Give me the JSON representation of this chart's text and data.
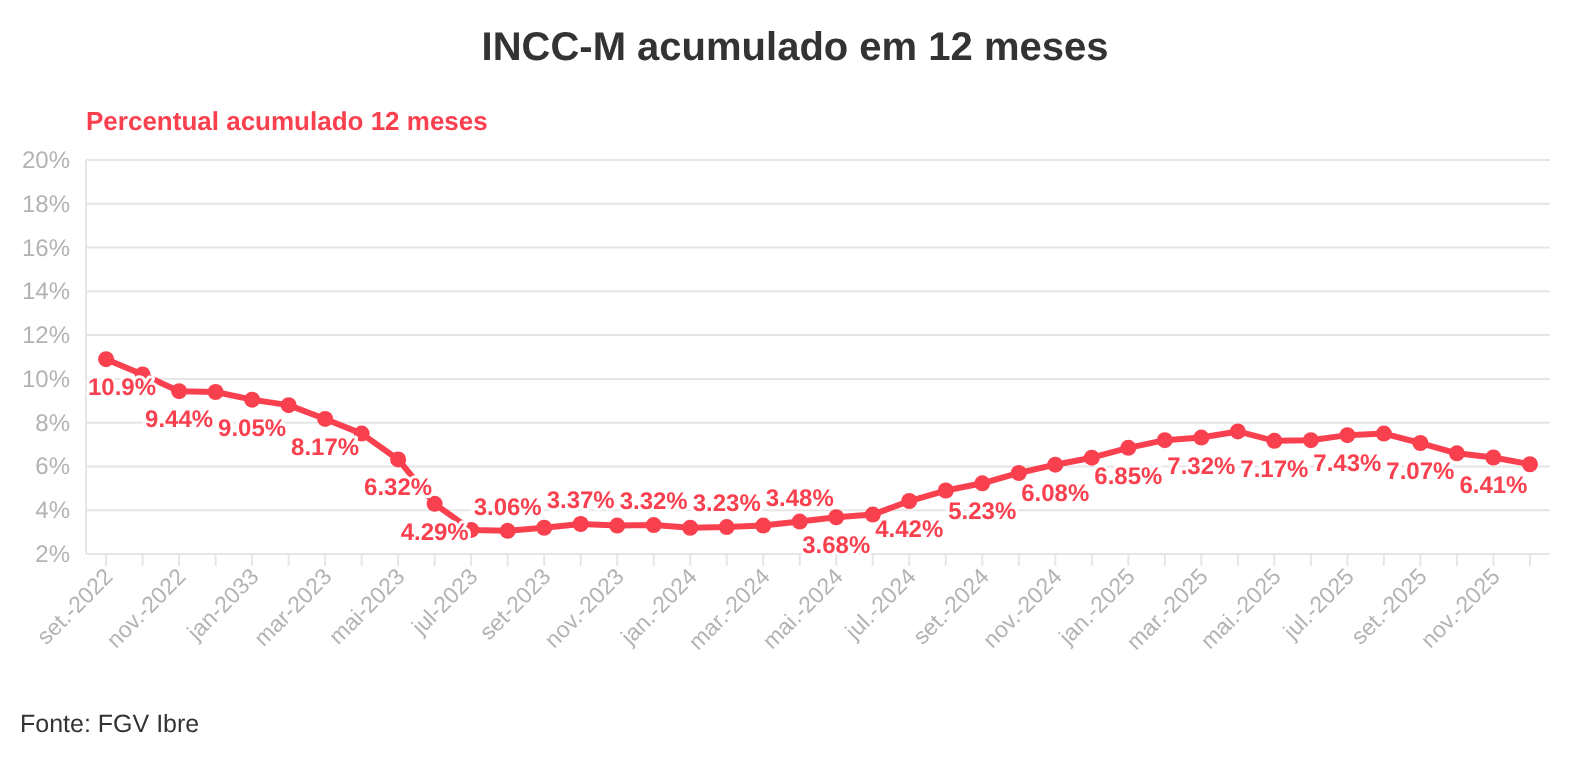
{
  "chart_data": {
    "type": "line",
    "title": "INCC-M acumulado em 12 meses",
    "subtitle": "Percentual acumulado 12 meses",
    "categories": [
      "set.-2022",
      null,
      "nov.-2022",
      null,
      "jan-2033",
      null,
      "mar-2023",
      null,
      "mai-2023",
      null,
      "jul-2023",
      null,
      "set-2023",
      null,
      "nov.-2023",
      null,
      "jan.-2024",
      null,
      "mar.-2024",
      null,
      "mai.-2024",
      null,
      "jul.-2024",
      null,
      "set.-2024",
      null,
      "nov.-2024",
      null,
      "jan.-2025",
      null,
      "mar.-2025",
      null,
      "mai.-2025",
      null,
      "jul.-2025",
      null,
      "set.-2025",
      null,
      "nov.-2025",
      null
    ],
    "series": [
      {
        "color": "#f9404f",
        "values": [
          10.9,
          10.2,
          9.44,
          9.4,
          9.05,
          8.8,
          8.17,
          7.5,
          6.32,
          4.29,
          3.1,
          3.06,
          3.2,
          3.37,
          3.3,
          3.32,
          3.2,
          3.23,
          3.3,
          3.48,
          3.68,
          3.8,
          4.42,
          4.9,
          5.23,
          5.7,
          6.08,
          6.4,
          6.85,
          7.2,
          7.32,
          7.6,
          7.17,
          7.2,
          7.43,
          7.5,
          7.07,
          6.6,
          6.41,
          6.1
        ],
        "value_labels": [
          "10.9%",
          null,
          "9.44%",
          null,
          "9.05%",
          null,
          "8.17%",
          null,
          "6.32%",
          "4.29%",
          null,
          "3.06%",
          null,
          "3.37%",
          null,
          "3.32%",
          null,
          "3.23%",
          null,
          "3.48%",
          "3.68%",
          null,
          "4.42%",
          null,
          "5.23%",
          null,
          "6.08%",
          null,
          "6.85%",
          null,
          "7.32%",
          null,
          "7.17%",
          null,
          "7.43%",
          null,
          "7.07%",
          null,
          "6.41%",
          null
        ]
      }
    ],
    "ylim": [
      2,
      20
    ],
    "yticks": [
      {
        "value": 2,
        "label": "2%"
      },
      {
        "value": 4,
        "label": "4%"
      },
      {
        "value": 6,
        "label": "6%"
      },
      {
        "value": 8,
        "label": "8%"
      },
      {
        "value": 10,
        "label": "10%"
      },
      {
        "value": 12,
        "label": "12%"
      },
      {
        "value": 14,
        "label": "14%"
      },
      {
        "value": 16,
        "label": "16%"
      },
      {
        "value": 18,
        "label": "18%"
      },
      {
        "value": 20,
        "label": "20%"
      }
    ],
    "grid": "y",
    "marker": "circle",
    "line_style": "solid",
    "annotations": [
      "Fonte: FGV Ibre"
    ]
  }
}
